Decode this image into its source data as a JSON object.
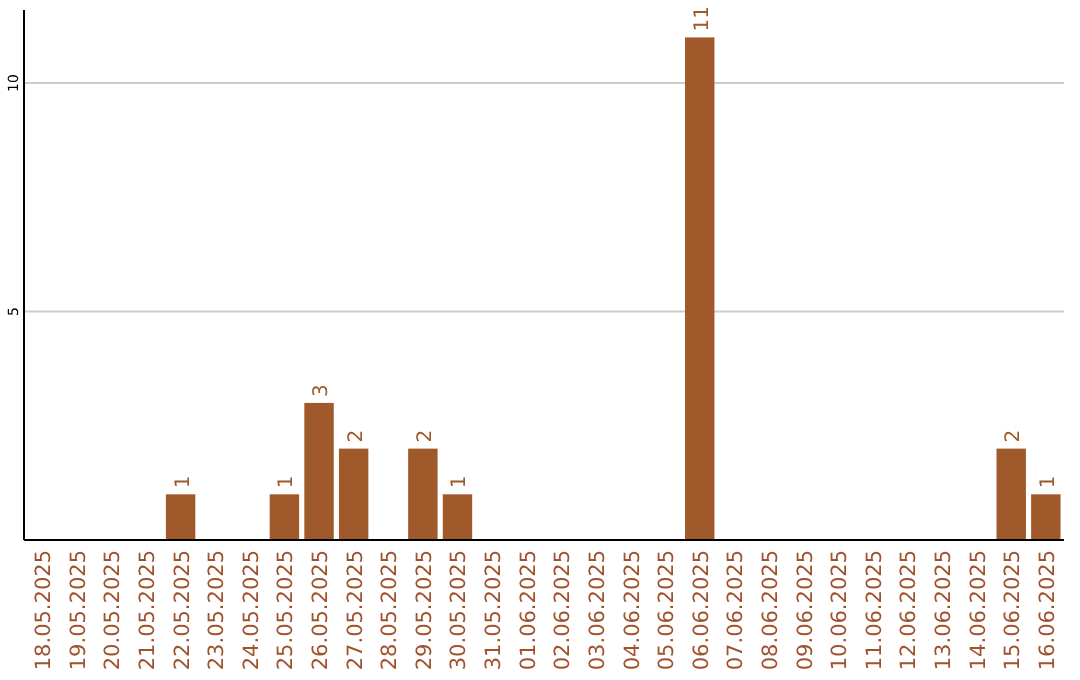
{
  "chart_data": {
    "type": "bar",
    "categories": [
      "18.05.2025",
      "19.05.2025",
      "20.05.2025",
      "21.05.2025",
      "22.05.2025",
      "23.05.2025",
      "24.05.2025",
      "25.05.2025",
      "26.05.2025",
      "27.05.2025",
      "28.05.2025",
      "29.05.2025",
      "30.05.2025",
      "31.05.2025",
      "01.06.2025",
      "02.06.2025",
      "03.06.2025",
      "04.06.2025",
      "05.06.2025",
      "06.06.2025",
      "07.06.2025",
      "08.06.2025",
      "09.06.2025",
      "10.06.2025",
      "11.06.2025",
      "12.06.2025",
      "13.06.2025",
      "14.06.2025",
      "15.06.2025",
      "16.06.2025"
    ],
    "values": [
      0,
      0,
      0,
      0,
      1,
      0,
      0,
      1,
      3,
      2,
      0,
      2,
      1,
      0,
      0,
      0,
      0,
      0,
      0,
      11,
      0,
      0,
      0,
      0,
      0,
      0,
      0,
      0,
      2,
      1
    ],
    "value_labels": [
      null,
      null,
      null,
      null,
      "1",
      null,
      null,
      "1",
      "3",
      "2",
      null,
      "2",
      "1",
      null,
      null,
      null,
      null,
      null,
      null,
      "11",
      null,
      null,
      null,
      null,
      null,
      null,
      null,
      null,
      "2",
      "1"
    ],
    "color": "#a0592a",
    "ylim": [
      0,
      11.6
    ],
    "yticks": [
      5,
      10
    ],
    "grid": "y"
  }
}
